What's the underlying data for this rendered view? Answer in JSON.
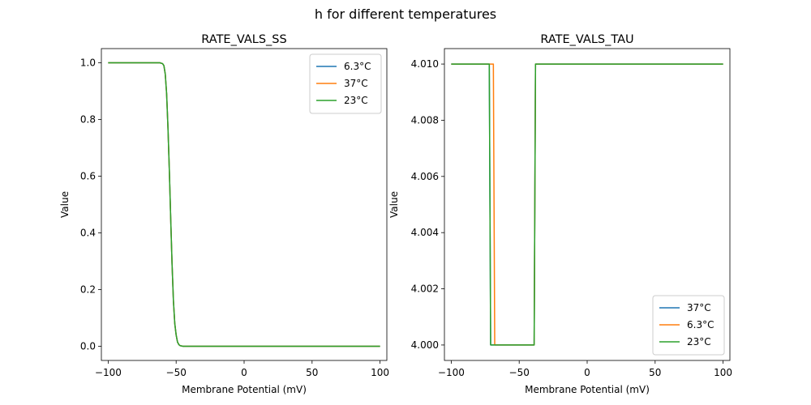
{
  "figure": {
    "suptitle": "h for different temperatures"
  },
  "chart_data": [
    {
      "type": "line",
      "title": "RATE_VALS_SS",
      "xlabel": "Membrane Potential (mV)",
      "ylabel": "Value",
      "xlim": [
        -105,
        105
      ],
      "ylim": [
        -0.05,
        1.05
      ],
      "xticks": [
        -100,
        -50,
        0,
        50,
        100
      ],
      "xtick_labels": [
        "−100",
        "−50",
        "0",
        "50",
        "100"
      ],
      "yticks": [
        0.0,
        0.2,
        0.4,
        0.6,
        0.8,
        1.0
      ],
      "ytick_labels": [
        "0.0",
        "0.2",
        "0.4",
        "0.6",
        "0.8",
        "1.0"
      ],
      "grid": false,
      "legend_position": "upper right",
      "series": [
        {
          "name": "6.3°C",
          "color": "#1f77b4",
          "x": [
            -100,
            -62,
            -60,
            -59,
            -58,
            -57,
            -56,
            -55,
            -54,
            -53,
            -52,
            -51,
            -50,
            -49,
            -48,
            -47,
            -46,
            -45,
            -44,
            100
          ],
          "y": [
            1.0,
            1.0,
            0.997,
            0.99,
            0.96,
            0.89,
            0.77,
            0.62,
            0.45,
            0.29,
            0.16,
            0.08,
            0.04,
            0.015,
            0.006,
            0.002,
            0.001,
            0.0,
            0.0,
            0.0
          ]
        },
        {
          "name": "37°C",
          "color": "#ff7f0e",
          "x": [
            -100,
            -62,
            -60,
            -59,
            -58,
            -57,
            -56,
            -55,
            -54,
            -53,
            -52,
            -51,
            -50,
            -49,
            -48,
            -47,
            -46,
            -45,
            -44,
            100
          ],
          "y": [
            1.0,
            1.0,
            0.997,
            0.99,
            0.96,
            0.89,
            0.77,
            0.62,
            0.45,
            0.29,
            0.16,
            0.08,
            0.04,
            0.015,
            0.006,
            0.002,
            0.001,
            0.0,
            0.0,
            0.0
          ]
        },
        {
          "name": "23°C",
          "color": "#2ca02c",
          "x": [
            -100,
            -62,
            -60,
            -59,
            -58,
            -57,
            -56,
            -55,
            -54,
            -53,
            -52,
            -51,
            -50,
            -49,
            -48,
            -47,
            -46,
            -45,
            -44,
            100
          ],
          "y": [
            1.0,
            1.0,
            0.997,
            0.99,
            0.96,
            0.89,
            0.77,
            0.62,
            0.45,
            0.29,
            0.16,
            0.08,
            0.04,
            0.015,
            0.006,
            0.002,
            0.001,
            0.0,
            0.0,
            0.0
          ]
        }
      ]
    },
    {
      "type": "line",
      "title": "RATE_VALS_TAU",
      "xlabel": "Membrane Potential (mV)",
      "ylabel": "Value",
      "xlim": [
        -105,
        105
      ],
      "ylim": [
        3.99945,
        4.01055
      ],
      "xticks": [
        -100,
        -50,
        0,
        50,
        100
      ],
      "xtick_labels": [
        "−100",
        "−50",
        "0",
        "50",
        "100"
      ],
      "yticks": [
        4.0,
        4.002,
        4.004,
        4.006,
        4.008,
        4.01
      ],
      "ytick_labels": [
        "4.000",
        "4.002",
        "4.004",
        "4.006",
        "4.008",
        "4.010"
      ],
      "grid": false,
      "legend_position": "lower right",
      "series": [
        {
          "name": "37°C",
          "color": "#1f77b4",
          "x": [
            -100,
            -72,
            -71,
            -39,
            -38,
            100
          ],
          "y": [
            4.01,
            4.01,
            4.0,
            4.0,
            4.01,
            4.01
          ]
        },
        {
          "name": "6.3°C",
          "color": "#ff7f0e",
          "x": [
            -100,
            -69,
            -68,
            -39,
            -38,
            100
          ],
          "y": [
            4.01,
            4.01,
            4.0,
            4.0,
            4.01,
            4.01
          ]
        },
        {
          "name": "23°C",
          "color": "#2ca02c",
          "x": [
            -100,
            -72,
            -71,
            -39,
            -38,
            100
          ],
          "y": [
            4.01,
            4.01,
            4.0,
            4.0,
            4.01,
            4.01
          ]
        }
      ]
    }
  ]
}
